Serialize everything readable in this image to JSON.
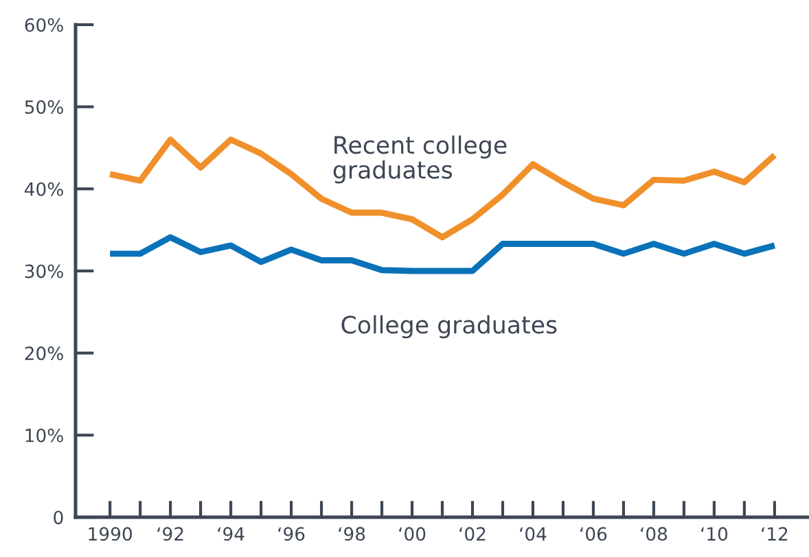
{
  "chart_data": {
    "type": "line",
    "categories": [
      "1990",
      null,
      "‘92",
      null,
      "‘94",
      null,
      "‘96",
      null,
      "‘98",
      null,
      "‘00",
      null,
      "‘02",
      null,
      "‘04",
      null,
      "‘06",
      null,
      "‘08",
      null,
      "‘10",
      null,
      "‘12"
    ],
    "series": [
      {
        "name": "Recent college\ngraduates",
        "color": "#f0902a",
        "values": [
          41.8,
          41,
          46,
          42.6,
          46,
          44.3,
          41.8,
          38.8,
          37.1,
          37.1,
          36.3,
          34.1,
          36.3,
          39.3,
          43,
          40.8,
          38.8,
          38,
          41.1,
          41,
          42.1,
          40.8,
          44.1
        ]
      },
      {
        "name": "College graduates",
        "color": "#0a72b8",
        "values": [
          32.1,
          32.1,
          34.1,
          32.3,
          33.1,
          31.1,
          32.6,
          31.3,
          31.3,
          30.1,
          30,
          30,
          30,
          33.3,
          33.3,
          33.3,
          33.3,
          32.1,
          33.3,
          32.1,
          33.3,
          32.1,
          33.1
        ]
      }
    ],
    "ylim": [
      0,
      60
    ],
    "yticks": [
      0,
      {
        "value": 10,
        "label": "10%"
      },
      {
        "value": 20,
        "label": "20%"
      },
      {
        "value": 30,
        "label": "30%"
      },
      {
        "value": 40,
        "label": "40%"
      },
      {
        "value": 50,
        "label": "50%"
      },
      {
        "value": 60,
        "label": "60%"
      }
    ],
    "grid": false,
    "marker": "none",
    "line_style": "solid"
  }
}
